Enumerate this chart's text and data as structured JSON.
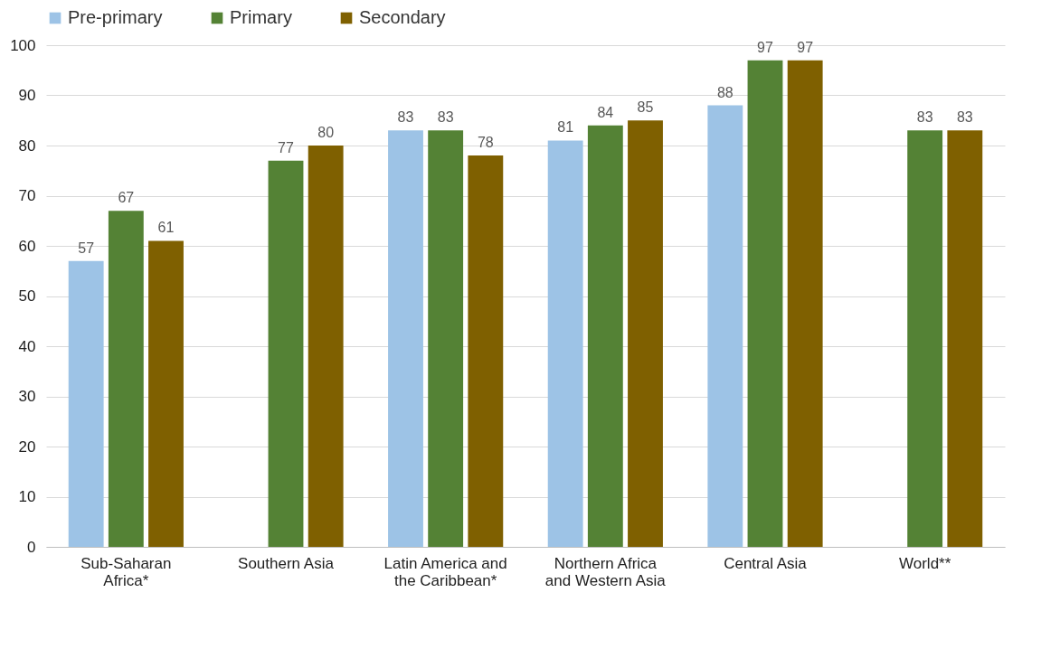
{
  "chart_data": {
    "type": "bar",
    "categories": [
      "Sub-Saharan Africa*",
      "Southern Asia",
      "Latin America and the Caribbean*",
      "Northern Africa and Western Asia",
      "Central Asia",
      "World**"
    ],
    "series": [
      {
        "name": "Pre-primary",
        "color": "#9dc3e6",
        "values": [
          57,
          null,
          83,
          81,
          88,
          null
        ]
      },
      {
        "name": "Primary",
        "color": "#548235",
        "values": [
          67,
          77,
          83,
          84,
          97,
          83
        ]
      },
      {
        "name": "Secondary",
        "color": "#7f6000",
        "values": [
          61,
          80,
          78,
          85,
          97,
          83
        ]
      }
    ],
    "ylim": [
      0,
      100
    ],
    "yticks": [
      0,
      10,
      20,
      30,
      40,
      50,
      60,
      70,
      80,
      90,
      100
    ],
    "grid": "y",
    "legend": "top",
    "data_labels": true
  }
}
